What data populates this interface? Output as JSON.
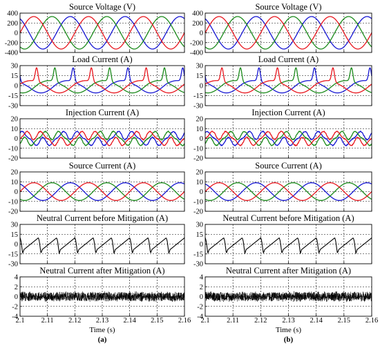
{
  "chart_data": {
    "type": "line",
    "x_ticks": [
      "2.1",
      "2.11",
      "2.12",
      "2.13",
      "2.14",
      "2.15",
      "2.16"
    ],
    "xlim": [
      2.1,
      2.16
    ],
    "xlabel": "Time (s)",
    "fundamental_hz": 50,
    "panel_labels": [
      "(a)",
      "(b)"
    ],
    "series_colors": {
      "phase_a": "#e8141c",
      "phase_b": "#1a8a1a",
      "phase_c": "#1414d2",
      "neutral": "#000000"
    },
    "grid": true,
    "rows": [
      {
        "title": "Source Voltage (V)",
        "ylim": [
          -400,
          400
        ],
        "y_ticks": [
          "400",
          "200",
          "0",
          "-200",
          "-400"
        ],
        "kind": "sine3",
        "amplitude": 330
      },
      {
        "title": "Load Current (A)",
        "ylim": [
          -30,
          30
        ],
        "y_ticks": [
          "30",
          "15",
          "0",
          "-15",
          "-30"
        ],
        "kind": "load3",
        "amplitude": 13
      },
      {
        "title": "Injection Current (A)",
        "ylim": [
          -20,
          20
        ],
        "y_ticks": [
          "20",
          "10",
          "0",
          "-10",
          "-20"
        ],
        "kind": "inject3",
        "amplitude": 8
      },
      {
        "title": "Source Current (A)",
        "ylim": [
          -20,
          20
        ],
        "y_ticks": [
          "20",
          "10",
          "0",
          "-10",
          "-20"
        ],
        "kind": "sine3",
        "amplitude": 9
      },
      {
        "title": "Neutral Current before Mitigation (A)",
        "ylim": [
          -30,
          30
        ],
        "y_ticks": [
          "30",
          "15",
          "0",
          "-15",
          "-30"
        ],
        "kind": "neutral_before",
        "amplitude": 10
      },
      {
        "title": "Neutral Current after Mitigation (A)",
        "ylim": [
          -4,
          4
        ],
        "y_ticks": [
          "4",
          "2",
          "0",
          "-2",
          "-4"
        ],
        "kind": "noise",
        "amplitude": 1.1
      }
    ]
  }
}
